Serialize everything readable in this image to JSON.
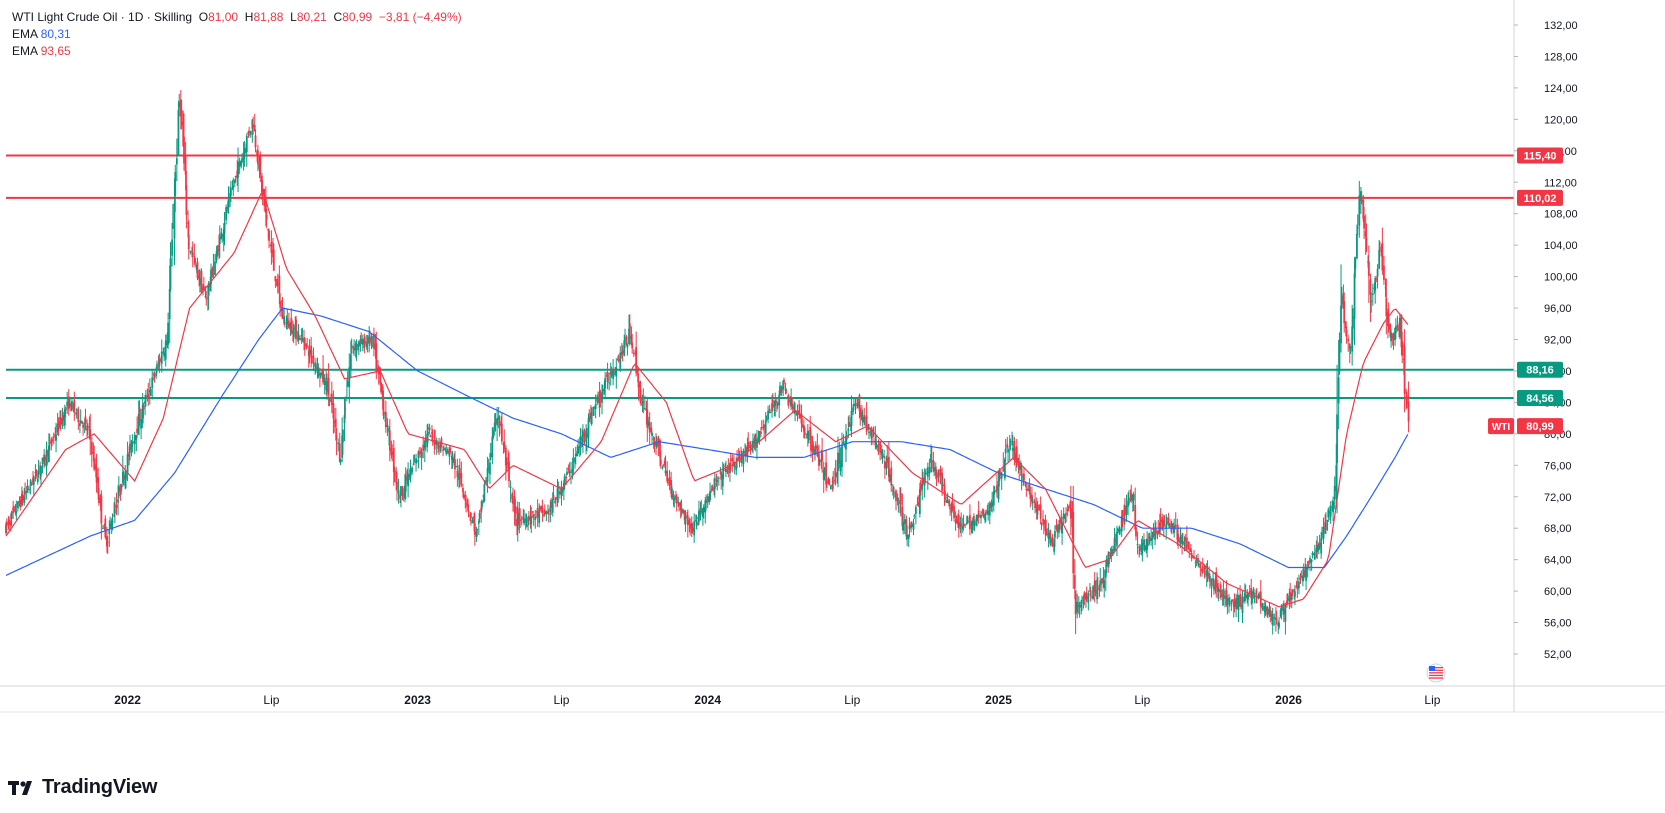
{
  "header": {
    "symbol": "WTI Light Crude Oil · 1D · Skilling",
    "o_label": "O",
    "o_value": "81,00",
    "h_label": "H",
    "h_value": "81,88",
    "l_label": "L",
    "l_value": "80,21",
    "c_label": "C",
    "c_value": "80,99",
    "change": "−3,81 (−4,49%)",
    "ema1_label": "EMA",
    "ema1_value": "80,31",
    "ema2_label": "EMA",
    "ema2_value": "93,65"
  },
  "brand": {
    "name": "TradingView"
  },
  "colors": {
    "up": "#089981",
    "down": "#f23645",
    "ema_fast": "#f23645",
    "ema_slow": "#2962ff",
    "resistance": "#f23645",
    "support": "#089981",
    "axis_text": "#131722",
    "grid": "#e0e3eb"
  },
  "chart_data": {
    "type": "candlestick",
    "title": "WTI Light Crude Oil · 1D · Skilling",
    "ylim": [
      48,
      134
    ],
    "y_ticks": [
      "52,00",
      "56,00",
      "60,00",
      "64,00",
      "68,00",
      "72,00",
      "76,00",
      "80,00",
      "84,00",
      "88,00",
      "92,00",
      "96,00",
      "100,00",
      "104,00",
      "108,00",
      "112,00",
      "116,00",
      "120,00",
      "124,00",
      "128,00",
      "132,00"
    ],
    "y_tick_values": [
      52,
      56,
      60,
      64,
      68,
      72,
      76,
      80,
      84,
      88,
      92,
      96,
      100,
      104,
      108,
      112,
      116,
      120,
      124,
      128,
      132
    ],
    "x_ticks": [
      {
        "label": "2022",
        "date": "2022-01-01",
        "bold": true
      },
      {
        "label": "Lip",
        "date": "2022-07-01",
        "bold": false
      },
      {
        "label": "2023",
        "date": "2023-01-01",
        "bold": true
      },
      {
        "label": "Lip",
        "date": "2023-07-01",
        "bold": false
      },
      {
        "label": "2024",
        "date": "2024-01-01",
        "bold": true
      },
      {
        "label": "Lip",
        "date": "2024-07-01",
        "bold": false
      },
      {
        "label": "2025",
        "date": "2025-01-01",
        "bold": true
      },
      {
        "label": "Lip",
        "date": "2025-07-01",
        "bold": false
      },
      {
        "label": "2026",
        "date": "2026-01-01",
        "bold": true
      },
      {
        "label": "Lip",
        "date": "2026-07-01",
        "bold": false
      }
    ],
    "x_range": [
      "2021-08-01",
      "2026-12-01"
    ],
    "horizontal_levels": [
      {
        "value": 115.4,
        "label": "115,40",
        "kind": "resistance"
      },
      {
        "value": 110.02,
        "label": "110,02",
        "kind": "resistance"
      },
      {
        "value": 88.16,
        "label": "88,16",
        "kind": "support"
      },
      {
        "value": 84.56,
        "label": "84,56",
        "kind": "support"
      }
    ],
    "last_price": {
      "symbol": "WTI",
      "value": 80.99,
      "label": "80,99"
    },
    "price_path": [
      [
        "2021-08-01",
        68
      ],
      [
        "2021-09-15",
        76
      ],
      [
        "2021-10-20",
        84
      ],
      [
        "2021-11-15",
        80
      ],
      [
        "2021-12-05",
        66
      ],
      [
        "2022-01-10",
        80
      ],
      [
        "2022-02-20",
        92
      ],
      [
        "2022-03-08",
        123
      ],
      [
        "2022-03-20",
        104
      ],
      [
        "2022-04-10",
        97
      ],
      [
        "2022-05-10",
        110
      ],
      [
        "2022-06-08",
        120
      ],
      [
        "2022-06-25",
        107
      ],
      [
        "2022-07-15",
        95
      ],
      [
        "2022-08-10",
        92
      ],
      [
        "2022-09-10",
        86
      ],
      [
        "2022-09-26",
        77
      ],
      [
        "2022-10-10",
        91
      ],
      [
        "2022-11-05",
        92
      ],
      [
        "2022-12-09",
        72
      ],
      [
        "2023-01-15",
        80
      ],
      [
        "2023-02-15",
        77
      ],
      [
        "2023-03-17",
        67
      ],
      [
        "2023-04-12",
        83
      ],
      [
        "2023-05-04",
        69
      ],
      [
        "2023-06-15",
        70
      ],
      [
        "2023-07-15",
        76
      ],
      [
        "2023-08-10",
        83
      ],
      [
        "2023-09-27",
        93
      ],
      [
        "2023-10-10",
        84
      ],
      [
        "2023-11-16",
        73
      ],
      [
        "2023-12-12",
        68
      ],
      [
        "2024-01-20",
        75
      ],
      [
        "2024-02-25",
        78
      ],
      [
        "2024-04-05",
        86
      ],
      [
        "2024-05-15",
        78
      ],
      [
        "2024-06-04",
        73
      ],
      [
        "2024-07-05",
        84
      ],
      [
        "2024-08-10",
        77
      ],
      [
        "2024-09-10",
        67
      ],
      [
        "2024-10-07",
        77
      ],
      [
        "2024-11-15",
        68
      ],
      [
        "2024-12-20",
        70
      ],
      [
        "2025-01-15",
        79
      ],
      [
        "2025-02-15",
        71
      ],
      [
        "2025-03-10",
        66
      ],
      [
        "2025-04-02",
        71
      ],
      [
        "2025-04-09",
        58
      ],
      [
        "2025-05-10",
        61
      ],
      [
        "2025-06-20",
        73
      ],
      [
        "2025-06-25",
        65
      ],
      [
        "2025-08-01",
        69
      ],
      [
        "2025-09-15",
        63
      ],
      [
        "2025-10-20",
        58
      ],
      [
        "2025-11-20",
        60
      ],
      [
        "2025-12-16",
        56
      ],
      [
        "2026-01-15",
        61
      ],
      [
        "2026-02-10",
        66
      ],
      [
        "2026-02-28",
        72
      ],
      [
        "2026-03-08",
        98
      ],
      [
        "2026-03-20",
        90
      ],
      [
        "2026-04-02",
        112
      ],
      [
        "2026-04-15",
        96
      ],
      [
        "2026-04-28",
        104
      ],
      [
        "2026-05-08",
        92
      ],
      [
        "2026-05-22",
        94
      ],
      [
        "2026-05-29",
        85
      ],
      [
        "2026-06-02",
        81
      ]
    ],
    "ema_fast_path": [
      [
        "2021-08-01",
        67
      ],
      [
        "2021-10-15",
        78
      ],
      [
        "2021-11-20",
        80
      ],
      [
        "2022-01-10",
        74
      ],
      [
        "2022-02-15",
        82
      ],
      [
        "2022-03-20",
        96
      ],
      [
        "2022-05-15",
        103
      ],
      [
        "2022-06-20",
        111
      ],
      [
        "2022-07-20",
        101
      ],
      [
        "2022-08-25",
        95
      ],
      [
        "2022-10-01",
        87
      ],
      [
        "2022-11-15",
        88
      ],
      [
        "2022-12-20",
        80
      ],
      [
        "2023-03-01",
        78
      ],
      [
        "2023-04-01",
        73
      ],
      [
        "2023-05-01",
        76
      ],
      [
        "2023-07-01",
        73
      ],
      [
        "2023-08-20",
        79
      ],
      [
        "2023-10-01",
        89
      ],
      [
        "2023-11-10",
        84
      ],
      [
        "2023-12-15",
        74
      ],
      [
        "2024-02-01",
        76
      ],
      [
        "2024-04-20",
        83
      ],
      [
        "2024-06-10",
        79
      ],
      [
        "2024-07-20",
        81
      ],
      [
        "2024-09-15",
        75
      ],
      [
        "2024-11-15",
        71
      ],
      [
        "2025-01-20",
        77
      ],
      [
        "2025-03-01",
        73
      ],
      [
        "2025-04-20",
        63
      ],
      [
        "2025-05-20",
        64
      ],
      [
        "2025-06-25",
        69
      ],
      [
        "2025-08-15",
        66
      ],
      [
        "2025-10-15",
        61
      ],
      [
        "2025-12-20",
        58
      ],
      [
        "2026-01-20",
        59
      ],
      [
        "2026-02-20",
        64
      ],
      [
        "2026-03-15",
        80
      ],
      [
        "2026-04-05",
        89
      ],
      [
        "2026-04-30",
        94
      ],
      [
        "2026-05-15",
        96
      ],
      [
        "2026-06-02",
        93.65
      ]
    ],
    "ema_slow_path": [
      [
        "2021-08-01",
        62
      ],
      [
        "2021-11-15",
        67
      ],
      [
        "2022-01-10",
        69
      ],
      [
        "2022-03-01",
        75
      ],
      [
        "2022-05-01",
        85
      ],
      [
        "2022-06-15",
        92
      ],
      [
        "2022-07-15",
        96
      ],
      [
        "2022-09-01",
        95
      ],
      [
        "2022-11-01",
        93
      ],
      [
        "2023-01-01",
        88
      ],
      [
        "2023-03-01",
        85
      ],
      [
        "2023-05-01",
        82
      ],
      [
        "2023-07-01",
        80
      ],
      [
        "2023-09-01",
        77
      ],
      [
        "2023-11-01",
        79
      ],
      [
        "2024-01-01",
        78
      ],
      [
        "2024-03-01",
        77
      ],
      [
        "2024-05-01",
        77
      ],
      [
        "2024-07-01",
        79
      ],
      [
        "2024-09-01",
        79
      ],
      [
        "2024-11-01",
        78
      ],
      [
        "2025-01-01",
        75
      ],
      [
        "2025-03-01",
        73
      ],
      [
        "2025-05-01",
        71
      ],
      [
        "2025-07-01",
        68
      ],
      [
        "2025-09-01",
        68
      ],
      [
        "2025-11-01",
        66
      ],
      [
        "2026-01-01",
        63
      ],
      [
        "2026-02-15",
        63
      ],
      [
        "2026-03-15",
        67
      ],
      [
        "2026-04-15",
        72
      ],
      [
        "2026-05-15",
        77
      ],
      [
        "2026-06-02",
        80.31
      ]
    ]
  }
}
